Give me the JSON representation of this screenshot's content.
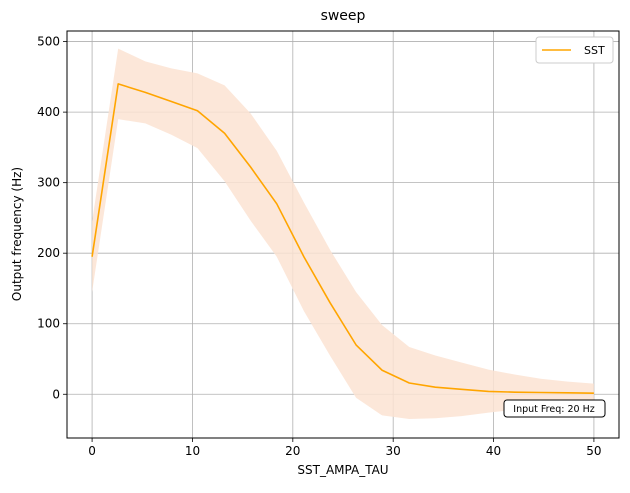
{
  "chart_data": {
    "type": "line",
    "title": "sweep",
    "xlabel": "SST_AMPA_TAU",
    "ylabel": "Output frequency (Hz)",
    "xlim": [
      -2.5,
      52.5
    ],
    "ylim": [
      -62,
      515
    ],
    "xticks": [
      0,
      10,
      20,
      30,
      40,
      50
    ],
    "yticks": [
      0,
      100,
      200,
      300,
      400,
      500
    ],
    "grid": true,
    "legend_position": "top-right",
    "annotation": "Input Freq: 20 Hz",
    "series": [
      {
        "name": "SST",
        "color": "#ffa500",
        "band_color": "#fbe3d2",
        "x": [
          0,
          2.6,
          5.3,
          7.9,
          10.5,
          13.2,
          15.8,
          18.4,
          21.1,
          23.7,
          26.3,
          28.9,
          31.6,
          34.2,
          36.8,
          39.5,
          42.1,
          44.7,
          47.4,
          50
        ],
        "values": [
          195,
          440,
          428,
          415,
          402,
          370,
          322,
          270,
          195,
          130,
          70,
          34,
          16,
          10,
          7,
          4,
          3,
          2.5,
          2,
          1.5
        ],
        "upper": [
          245,
          490,
          472,
          462,
          455,
          438,
          398,
          345,
          272,
          205,
          145,
          98,
          67,
          55,
          45,
          35,
          28,
          22,
          18,
          15
        ],
        "lower": [
          145,
          390,
          384,
          368,
          349,
          302,
          246,
          195,
          118,
          55,
          -5,
          -30,
          -35,
          -34,
          -31,
          -26,
          -22,
          -18,
          -14,
          -12
        ]
      }
    ]
  }
}
